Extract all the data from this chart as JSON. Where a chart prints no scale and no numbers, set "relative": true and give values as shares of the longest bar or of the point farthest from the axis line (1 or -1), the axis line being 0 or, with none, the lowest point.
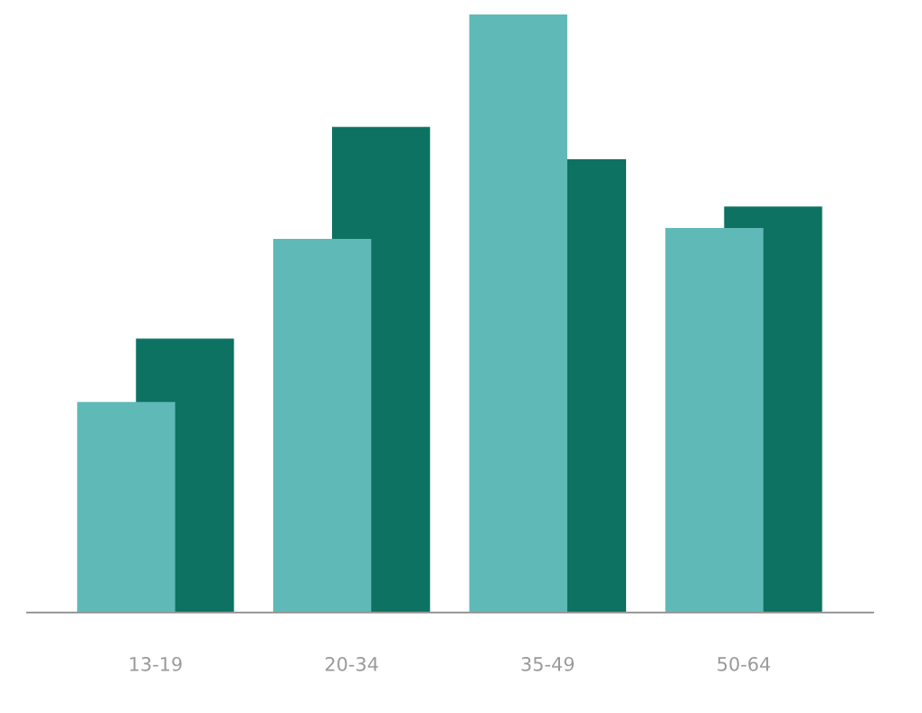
{
  "chart_data": {
    "type": "bar",
    "relative": true,
    "categories": [
      "13-19",
      "20-34",
      "35-49",
      "50-64"
    ],
    "series": [
      {
        "color": "#0e7263",
        "values": [
          0.458,
          0.812,
          0.758,
          0.679
        ]
      },
      {
        "color": "#5fb9b7",
        "values": [
          0.352,
          0.625,
          1,
          0.643
        ]
      }
    ]
  }
}
